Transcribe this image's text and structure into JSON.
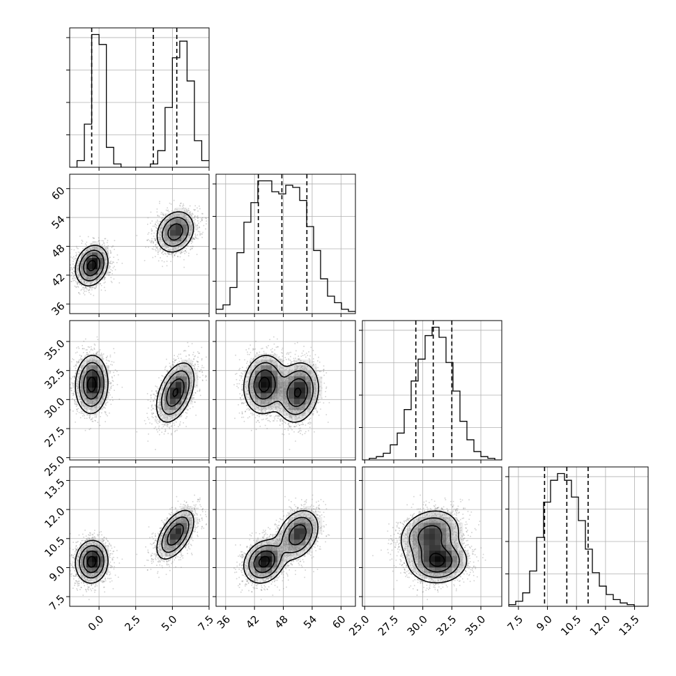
{
  "chart_data": {
    "type": "corner",
    "parameters": [
      {
        "ticks": [
          0.0,
          2.5,
          5.0,
          7.5
        ],
        "tick_labels": [
          "0.0",
          "2.5",
          "5.0",
          "7.5"
        ],
        "range": [
          -2.0,
          7.5
        ],
        "quantiles": [
          -0.5,
          3.7,
          5.3
        ]
      },
      {
        "ticks": [
          36,
          42,
          48,
          54,
          60
        ],
        "tick_labels": [
          "36",
          "42",
          "48",
          "54",
          "60"
        ],
        "range": [
          34,
          63
        ],
        "quantiles": [
          42.8,
          47.7,
          52.9
        ]
      },
      {
        "ticks": [
          25.0,
          27.5,
          30.0,
          32.5,
          35.0
        ],
        "tick_labels": [
          "25.0",
          "27.5",
          "30.0",
          "32.5",
          "35.0"
        ],
        "range": [
          24.8,
          36.8
        ],
        "quantiles": [
          29.4,
          30.9,
          32.5
        ]
      },
      {
        "ticks": [
          7.5,
          9.0,
          10.5,
          12.0,
          13.5
        ],
        "tick_labels": [
          "7.5",
          "9.0",
          "10.5",
          "12.0",
          "13.5"
        ],
        "range": [
          7.0,
          14.2
        ],
        "quantiles": [
          8.85,
          10.0,
          11.1
        ]
      }
    ],
    "histograms": [
      {
        "param": 0,
        "bin_edges": [
          -2.0,
          -1.5,
          -1.0,
          -0.5,
          0.0,
          0.5,
          1.0,
          1.5,
          2.0,
          2.5,
          3.0,
          3.5,
          4.0,
          4.5,
          5.0,
          5.5,
          6.0,
          6.5,
          7.0,
          7.5
        ],
        "counts": [
          0,
          2,
          13,
          40,
          37,
          6,
          1,
          0,
          0,
          0,
          0,
          1,
          5,
          18,
          33,
          38,
          26,
          8,
          2
        ]
      },
      {
        "param": 1,
        "bin_edges": [
          34,
          35.45,
          36.9,
          38.35,
          39.8,
          41.25,
          42.7,
          44.15,
          45.6,
          47.05,
          48.5,
          49.95,
          51.4,
          52.85,
          54.3,
          55.75,
          57.2,
          58.65,
          60.1,
          61.55,
          63
        ],
        "counts": [
          2,
          4,
          12,
          28,
          42,
          51,
          61,
          61,
          56,
          55,
          59,
          58,
          52,
          40,
          29,
          16,
          8,
          5,
          2,
          1
        ]
      },
      {
        "param": 2,
        "bin_edges": [
          24.8,
          25.4,
          26.0,
          26.6,
          27.2,
          27.8,
          28.4,
          29.0,
          29.6,
          30.2,
          30.8,
          31.4,
          32.0,
          32.6,
          33.2,
          33.8,
          34.4,
          35.0,
          35.6,
          36.2,
          36.8
        ],
        "counts": [
          0,
          1,
          2,
          4,
          9,
          16,
          30,
          47,
          60,
          74,
          79,
          73,
          58,
          41,
          23,
          12,
          5,
          2,
          1,
          0
        ]
      },
      {
        "param": 3,
        "bin_edges": [
          7.0,
          7.36,
          7.72,
          8.08,
          8.44,
          8.8,
          9.16,
          9.52,
          9.88,
          10.24,
          10.6,
          10.96,
          11.32,
          11.68,
          12.04,
          12.4,
          12.76,
          13.12,
          13.48,
          13.84,
          14.2
        ],
        "counts": [
          1,
          3,
          8,
          21,
          41,
          62,
          75,
          79,
          75,
          65,
          51,
          34,
          20,
          12,
          7,
          4,
          2,
          1,
          0,
          0
        ]
      }
    ],
    "joint_components": [
      {
        "weight": 0.5,
        "mean": [
          -0.5,
          44.0,
          31.3,
          9.3
        ],
        "sd": [
          0.55,
          2.1,
          1.25,
          0.55
        ],
        "corr": [
          [
            1,
            0.2,
            0.05,
            0.05
          ],
          [
            0.2,
            1,
            0.1,
            0.2
          ],
          [
            0.05,
            0.1,
            1,
            0.05
          ],
          [
            0.05,
            0.2,
            0.05,
            1
          ]
        ]
      },
      {
        "weight": 0.5,
        "mean": [
          5.2,
          51.0,
          30.6,
          10.7
        ],
        "sd": [
          0.65,
          2.2,
          1.3,
          0.65
        ],
        "corr": [
          [
            1,
            0.2,
            0.45,
            0.55
          ],
          [
            0.2,
            1,
            0.15,
            0.3
          ],
          [
            0.45,
            0.15,
            1,
            0.2
          ],
          [
            0.55,
            0.3,
            0.2,
            1
          ]
        ]
      }
    ],
    "samples": 4000,
    "contour_levels_sigma": [
      0.5,
      1.0,
      1.5,
      2.0
    ],
    "grid": true
  }
}
